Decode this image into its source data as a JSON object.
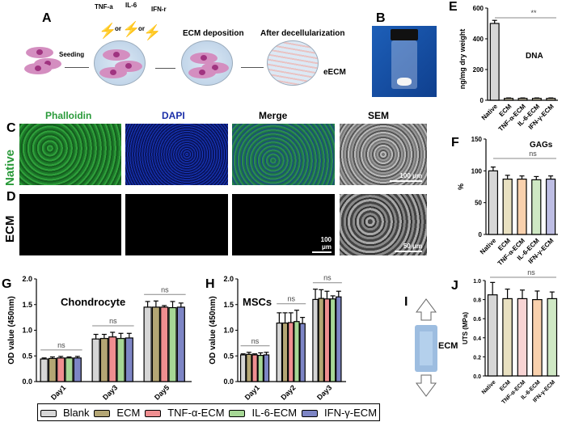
{
  "panels": {
    "A": "A",
    "B": "B",
    "C": "C",
    "D": "D",
    "E": "E",
    "F": "F",
    "G": "G",
    "H": "H",
    "I": "I",
    "J": "J"
  },
  "schematic": {
    "tnf": "TNF-a",
    "il6": "IL-6",
    "ifn": "IFN-r",
    "or1": "or",
    "or2": "or",
    "seeding": "Seeding",
    "deposition": "ECM deposition",
    "decell": "After decellularization",
    "eecm": "eECM"
  },
  "micro": {
    "cols": [
      "Phalloidin",
      "DAPI",
      "Merge",
      "SEM"
    ],
    "rows": [
      "Native",
      "ECM"
    ],
    "scale_c": "100 μm",
    "scale_d": "100 μm",
    "scale_d_sem": "50 μm"
  },
  "I": {
    "label": "ECM"
  },
  "legend": [
    "Blank",
    "ECM",
    "TNF-α-ECM",
    "IL-6-ECM",
    "IFN-γ-ECM"
  ],
  "colors": {
    "Blank": "#d6d6d6",
    "ECM": "#b4a674",
    "TNF": "#ef8e90",
    "IL6": "#a6d795",
    "IFN": "#7d85c5",
    "beige": "#e9e1c1",
    "peach": "#f9d1ad",
    "pinkl": "#f8d4d4",
    "greenl": "#cfe8c4",
    "purplel": "#bdbde3"
  },
  "chart_data": [
    {
      "id": "E",
      "type": "bar",
      "title": "DNA",
      "ylabel": "ng/mg dry weight",
      "ylim": [
        0,
        600
      ],
      "yticks": [
        0,
        200,
        400,
        600
      ],
      "categories": [
        "Native",
        "ECM",
        "TNF-α-ECM",
        "IL-6-ECM",
        "IFN-γ-ECM"
      ],
      "values": [
        500,
        12,
        12,
        12,
        12
      ],
      "errors": [
        20,
        3,
        3,
        3,
        3
      ],
      "significance": "**"
    },
    {
      "id": "F",
      "type": "bar",
      "title": "GAGs",
      "ylabel": "%",
      "ylim": [
        0,
        150
      ],
      "yticks": [
        0,
        50,
        100,
        150
      ],
      "categories": [
        "Native",
        "ECM",
        "TNF-α-ECM",
        "IL-6-ECM",
        "IFN-γ-ECM"
      ],
      "values": [
        100,
        87,
        87,
        86,
        87
      ],
      "errors": [
        6,
        6,
        5,
        5,
        5
      ],
      "significance": "ns"
    },
    {
      "id": "G",
      "type": "bar",
      "title": "Chondrocyte",
      "ylabel": "OD value (450nm)",
      "ylim": [
        0,
        2.0
      ],
      "yticks": [
        "0.0",
        "0.5",
        "1.0",
        "1.5",
        "2.0"
      ],
      "categories": [
        "Day1",
        "Day3",
        "Day5"
      ],
      "series": [
        {
          "name": "Blank",
          "values": [
            0.44,
            0.83,
            1.45
          ],
          "errors": [
            0.02,
            0.09,
            0.11
          ]
        },
        {
          "name": "ECM",
          "values": [
            0.45,
            0.84,
            1.45
          ],
          "errors": [
            0.03,
            0.08,
            0.12
          ]
        },
        {
          "name": "TNF-α-ECM",
          "values": [
            0.46,
            0.87,
            1.45
          ],
          "errors": [
            0.03,
            0.09,
            0.03
          ]
        },
        {
          "name": "IL-6-ECM",
          "values": [
            0.46,
            0.84,
            1.44
          ],
          "errors": [
            0.02,
            0.1,
            0.12
          ]
        },
        {
          "name": "IFN-γ-ECM",
          "values": [
            0.46,
            0.85,
            1.45
          ],
          "errors": [
            0.03,
            0.09,
            0.08
          ]
        }
      ],
      "significance": [
        "ns",
        "ns",
        "ns"
      ]
    },
    {
      "id": "H",
      "type": "bar",
      "title": "MSCs",
      "ylabel": "OD value (450nm)",
      "ylim": [
        0,
        2.0
      ],
      "yticks": [
        "0.0",
        "0.5",
        "1.0",
        "1.5",
        "2.0"
      ],
      "categories": [
        "Day1",
        "Day2",
        "Day3"
      ],
      "series": [
        {
          "name": "Blank",
          "values": [
            0.52,
            1.14,
            1.6
          ],
          "errors": [
            0.02,
            0.2,
            0.2
          ]
        },
        {
          "name": "ECM",
          "values": [
            0.53,
            1.14,
            1.62
          ],
          "errors": [
            0.04,
            0.2,
            0.17
          ]
        },
        {
          "name": "TNF-α-ECM",
          "values": [
            0.52,
            1.15,
            1.61
          ],
          "errors": [
            0.02,
            0.19,
            0.15
          ]
        },
        {
          "name": "IL-6-ECM",
          "values": [
            0.51,
            1.17,
            1.61
          ],
          "errors": [
            0.05,
            0.22,
            0.06
          ]
        },
        {
          "name": "IFN-γ-ECM",
          "values": [
            0.52,
            1.13,
            1.65
          ],
          "errors": [
            0.05,
            0.12,
            0.11
          ]
        }
      ],
      "significance": [
        "ns",
        "ns",
        "ns"
      ]
    },
    {
      "id": "J",
      "type": "bar",
      "title": "",
      "ylabel": "UTS (MPa)",
      "ylim": [
        0,
        1.0
      ],
      "yticks": [
        "0.0",
        "0.2",
        "0.4",
        "0.6",
        "0.8",
        "1.0"
      ],
      "categories": [
        "Native",
        "ECM",
        "TNF-α-ECM",
        "IL-6-ECM",
        "IFN-γ-ECM"
      ],
      "values": [
        0.85,
        0.81,
        0.81,
        0.8,
        0.81
      ],
      "errors": [
        0.13,
        0.1,
        0.09,
        0.09,
        0.07
      ],
      "significance": "ns"
    }
  ]
}
